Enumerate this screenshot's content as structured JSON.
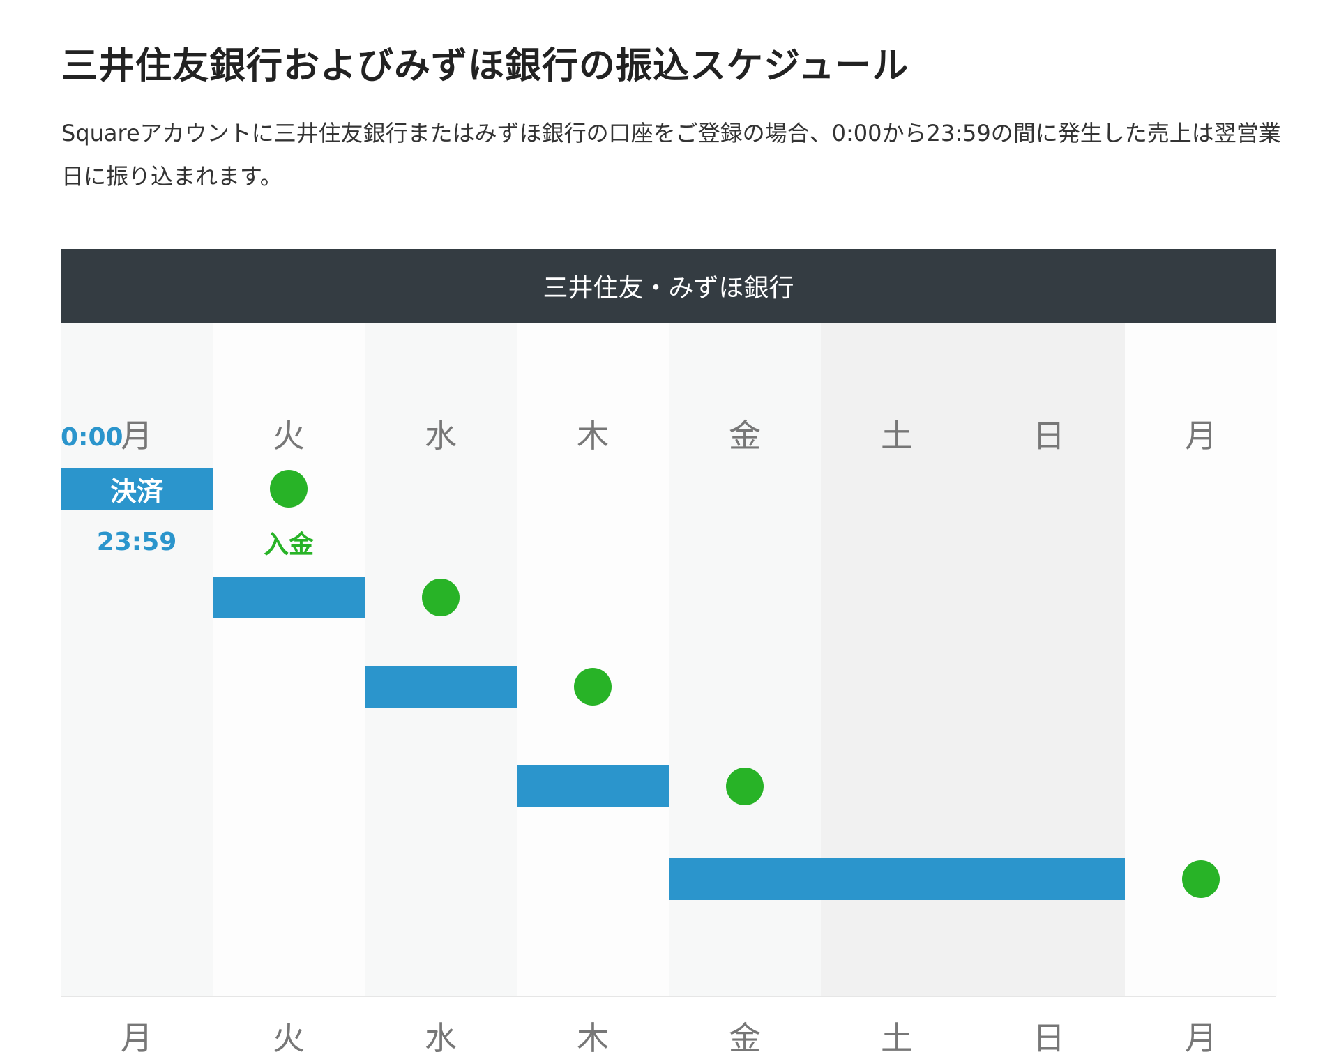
{
  "title": "三井住友銀行およびみずほ銀行の振込スケジュール",
  "description": "Squareアカウントに三井住友銀行またはみずほ銀行の口座をご登録の場合、0:00から23:59の間に発生した売上は翌営業日に振り込まれます。",
  "table": {
    "header": "三井住友・みずほ銀行",
    "days": [
      "月",
      "火",
      "水",
      "木",
      "金",
      "土",
      "日",
      "月"
    ],
    "weekend_columns": [
      5,
      6
    ],
    "start_time": "0:00",
    "end_time": "23:59",
    "settlement_label": "決済",
    "deposit_label": "入金",
    "schedule": [
      {
        "settle_from": 0,
        "settle_to": 0,
        "deposit": 1
      },
      {
        "settle_from": 1,
        "settle_to": 1,
        "deposit": 2
      },
      {
        "settle_from": 2,
        "settle_to": 2,
        "deposit": 3
      },
      {
        "settle_from": 3,
        "settle_to": 3,
        "deposit": 4
      },
      {
        "settle_from": 4,
        "settle_to": 6,
        "deposit": 7
      }
    ],
    "colors": {
      "header": "#343c42",
      "settlement": "#2b95cc",
      "deposit": "#28b327"
    }
  }
}
